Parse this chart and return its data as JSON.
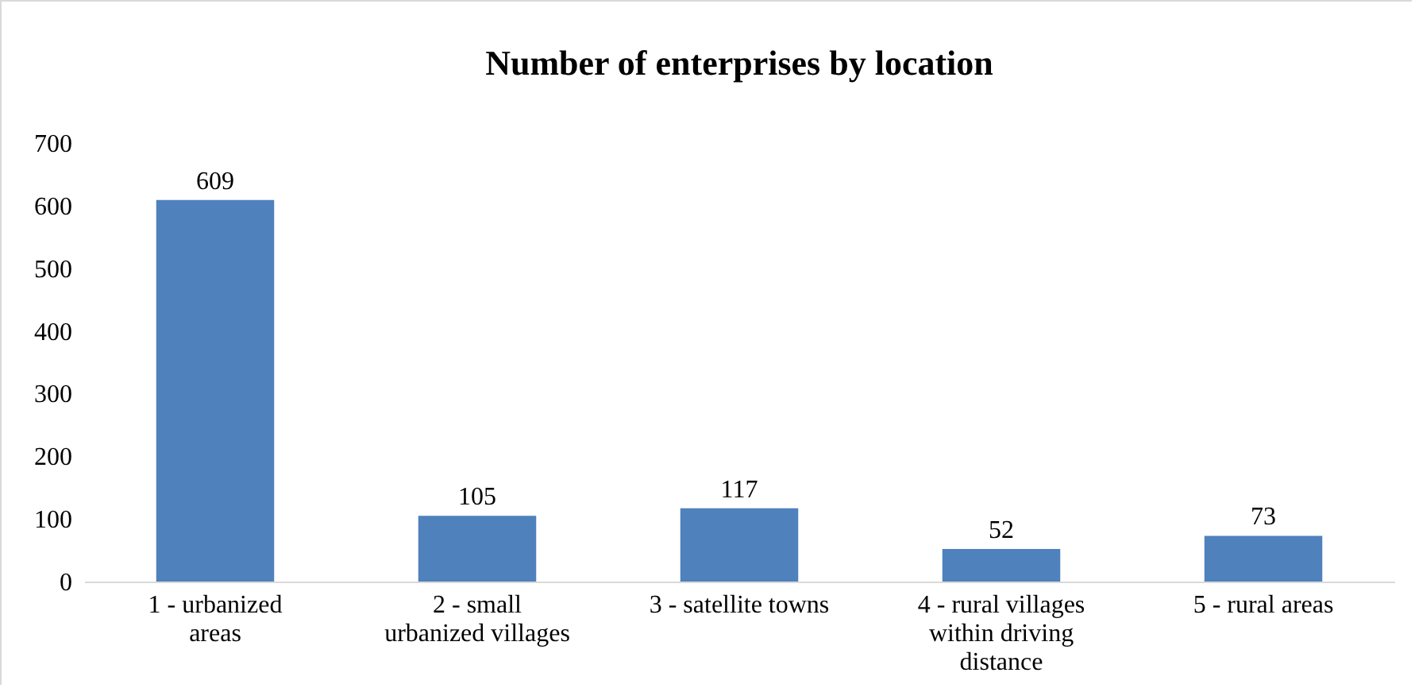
{
  "chart_data": {
    "type": "bar",
    "title": "Number of enterprises by location",
    "categories": [
      "1 - urbanized areas",
      "2 - small urbanized villages",
      "3 - satellite towns",
      "4 - rural villages within driving distance",
      "5 - rural areas"
    ],
    "values": [
      609,
      105,
      117,
      52,
      73
    ],
    "color": "#4f81bd",
    "data_labels": true,
    "ylim": [
      0,
      700
    ],
    "yticks": [
      0,
      100,
      200,
      300,
      400,
      500,
      600,
      700
    ],
    "grid": false
  }
}
